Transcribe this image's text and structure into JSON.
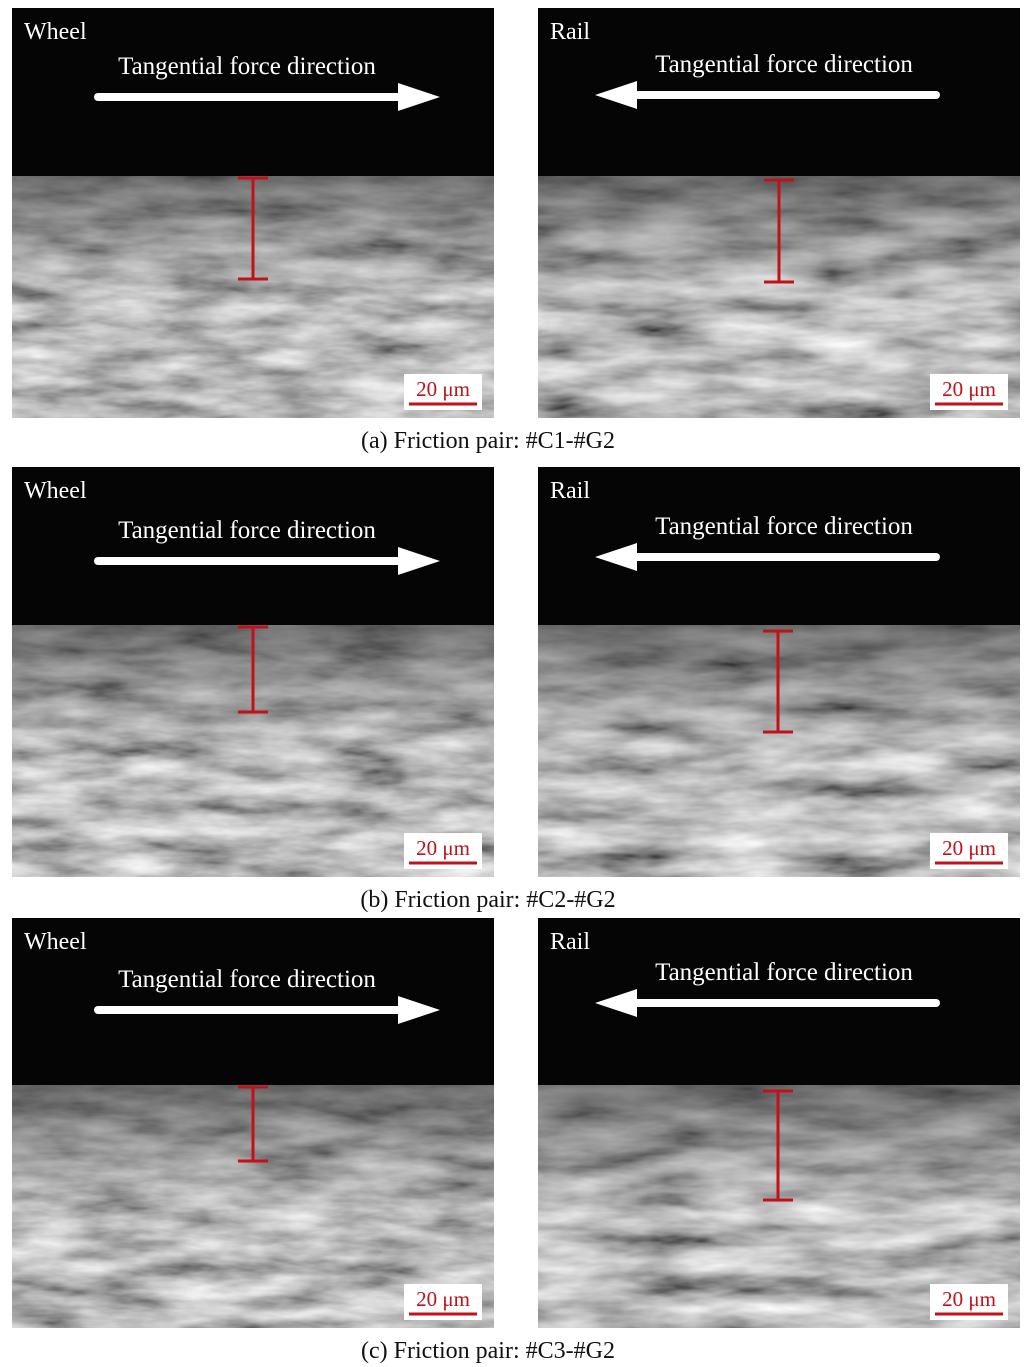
{
  "figure_rows": [
    {
      "caption": "(a) Friction pair: #C1-#G2",
      "panels": [
        {
          "label": "Wheel",
          "annotation": "Tangential force direction",
          "scale_bar": "20 μm"
        },
        {
          "label": "Rail",
          "annotation": "Tangential force direction",
          "scale_bar": "20 μm"
        }
      ]
    },
    {
      "caption": "(b) Friction pair: #C2-#G2",
      "panels": [
        {
          "label": "Wheel",
          "annotation": "Tangential force direction",
          "scale_bar": "20 μm"
        },
        {
          "label": "Rail",
          "annotation": "Tangential force direction",
          "scale_bar": "20 μm"
        }
      ]
    },
    {
      "caption": "(c) Friction pair: #C3-#G2",
      "panels": [
        {
          "label": "Wheel",
          "annotation": "Tangential force direction",
          "scale_bar": "20 μm"
        },
        {
          "label": "Rail",
          "annotation": "Tangential force direction",
          "scale_bar": "20 μm"
        }
      ]
    }
  ]
}
